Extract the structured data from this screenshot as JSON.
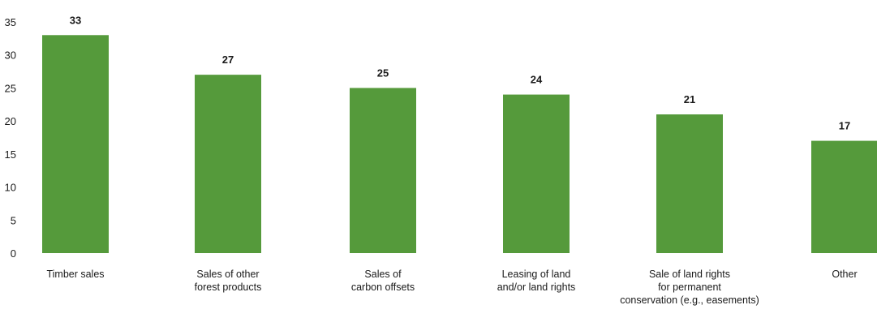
{
  "chart_data": {
    "type": "bar",
    "categories": [
      "Timber sales",
      "Sales of other forest products",
      "Sales of carbon offsets",
      "Leasing of land and/or land rights",
      "Sale of land rights for permanent conservation (e.g., easements)",
      "Other"
    ],
    "category_lines": [
      [
        "Timber sales"
      ],
      [
        "Sales of other",
        "forest products"
      ],
      [
        "Sales of",
        "carbon offsets"
      ],
      [
        "Leasing of land",
        "and/or land rights"
      ],
      [
        "Sale of land rights",
        "for permanent",
        "conservation (e.g., easements)"
      ],
      [
        "Other"
      ]
    ],
    "values": [
      33,
      27,
      25,
      24,
      21,
      17
    ],
    "data_labels": [
      "33",
      "27",
      "25",
      "24",
      "21",
      "17"
    ],
    "yticks": [
      0,
      5,
      10,
      15,
      20,
      25,
      30,
      35
    ],
    "ytick_labels": [
      "0",
      "5",
      "10",
      "15",
      "20",
      "25",
      "30",
      "35"
    ],
    "ylim": [
      0,
      35
    ],
    "bar_color": "#559a3b",
    "grid": false,
    "legend": "none",
    "title": "",
    "xlabel": "",
    "ylabel": ""
  }
}
